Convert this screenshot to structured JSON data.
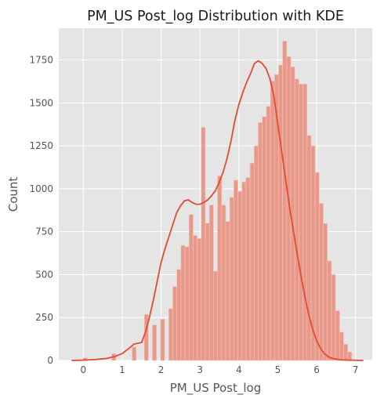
{
  "chart_data": {
    "type": "bar",
    "title": "PM_US Post_log Distribution with KDE",
    "xlabel": "PM_US Post_log",
    "ylabel": "Count",
    "xlim": [
      -0.63,
      7.43
    ],
    "ylim": [
      0,
      1935
    ],
    "x_ticks": [
      0,
      1,
      2,
      3,
      4,
      5,
      6,
      7
    ],
    "y_ticks": [
      0,
      250,
      500,
      750,
      1000,
      1250,
      1500,
      1750
    ],
    "grid": true,
    "legend": "none",
    "colors": {
      "background": "#e5e5e5",
      "grid": "#ffffff",
      "bar_fill": "#e8998a",
      "bar_edge": "#f1c6bd",
      "kde_line": "#e24a33"
    },
    "bins": {
      "start": 0.0,
      "width": 0.1046,
      "counts": [
        15,
        0,
        0,
        0,
        0,
        0,
        0,
        40,
        0,
        0,
        0,
        0,
        78,
        0,
        0,
        268,
        0,
        207,
        0,
        240,
        0,
        302,
        430,
        530,
        670,
        662,
        850,
        728,
        710,
        1358,
        800,
        905,
        520,
        1075,
        905,
        810,
        950,
        1050,
        985,
        1040,
        1065,
        1150,
        1250,
        1385,
        1420,
        1480,
        1628,
        1665,
        1720,
        1860,
        1770,
        1710,
        1640,
        1610,
        1610,
        1310,
        1250,
        1095,
        915,
        798,
        580,
        500,
        290,
        165,
        95,
        50
      ]
    },
    "kde": {
      "x": [
        -0.3,
        0.0,
        0.3,
        0.6,
        0.8,
        1.0,
        1.2,
        1.3,
        1.4,
        1.5,
        1.6,
        1.7,
        1.8,
        1.9,
        2.0,
        2.1,
        2.2,
        2.3,
        2.4,
        2.5,
        2.6,
        2.7,
        2.8,
        2.9,
        3.0,
        3.1,
        3.2,
        3.3,
        3.4,
        3.5,
        3.6,
        3.7,
        3.8,
        3.9,
        4.0,
        4.1,
        4.2,
        4.3,
        4.4,
        4.5,
        4.6,
        4.7,
        4.8,
        4.9,
        5.0,
        5.1,
        5.2,
        5.3,
        5.4,
        5.5,
        5.6,
        5.7,
        5.8,
        5.9,
        6.0,
        6.1,
        6.2,
        6.3,
        6.4,
        6.6,
        6.8,
        7.0,
        7.2
      ],
      "y": [
        0,
        2,
        5,
        12,
        22,
        40,
        75,
        95,
        100,
        105,
        165,
        250,
        350,
        460,
        570,
        650,
        720,
        790,
        860,
        900,
        930,
        935,
        920,
        910,
        910,
        920,
        935,
        960,
        990,
        1040,
        1100,
        1180,
        1280,
        1400,
        1490,
        1560,
        1620,
        1670,
        1730,
        1745,
        1730,
        1700,
        1640,
        1540,
        1380,
        1220,
        1060,
        900,
        760,
        620,
        490,
        370,
        265,
        180,
        115,
        70,
        40,
        22,
        12,
        4,
        2,
        1,
        0
      ]
    }
  }
}
